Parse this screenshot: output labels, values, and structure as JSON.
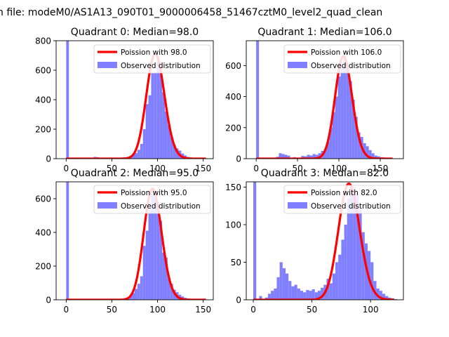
{
  "figure": {
    "suptitle": "n file: modeM0/AS1A13_090T01_9000006458_51467cztM0_level2_quad_clean"
  },
  "colors": {
    "hist": "#8080ff",
    "poisson": "#ff0000"
  },
  "chart_data": [
    {
      "type": "bar",
      "title": "Quadrant 0: Median=98.0",
      "legend": {
        "placement": "top-right",
        "entries": [
          "Poission with 98.0",
          "Observed distribution"
        ]
      },
      "xlim": [
        -11,
        161
      ],
      "ylim": [
        0,
        800
      ],
      "xticks": [
        0,
        50,
        100,
        150
      ],
      "yticks": [
        0,
        200,
        400,
        600,
        800
      ],
      "bin_width": 3,
      "series": [
        {
          "type": "bar",
          "bins": [
            [
              0,
              800
            ],
            [
              30,
              12
            ],
            [
              33,
              10
            ],
            [
              36,
              6
            ],
            [
              54,
              4
            ],
            [
              57,
              5
            ],
            [
              60,
              8
            ],
            [
              63,
              10
            ],
            [
              66,
              12
            ],
            [
              69,
              18
            ],
            [
              72,
              25
            ],
            [
              75,
              38
            ],
            [
              78,
              60
            ],
            [
              81,
              100
            ],
            [
              84,
              200
            ],
            [
              87,
              370
            ],
            [
              90,
              430
            ],
            [
              93,
              580
            ],
            [
              96,
              580
            ],
            [
              99,
              690
            ],
            [
              102,
              580
            ],
            [
              105,
              450
            ],
            [
              108,
              320
            ],
            [
              111,
              230
            ],
            [
              114,
              150
            ],
            [
              117,
              95
            ],
            [
              120,
              70
            ],
            [
              123,
              55
            ],
            [
              126,
              35
            ],
            [
              129,
              22
            ],
            [
              132,
              12
            ],
            [
              135,
              8
            ],
            [
              138,
              5
            ],
            [
              141,
              3
            ],
            [
              144,
              2
            ],
            [
              147,
              1
            ]
          ]
        },
        {
          "type": "line",
          "mu": 98.0,
          "x_range": [
            0,
            153
          ]
        }
      ]
    },
    {
      "type": "bar",
      "title": "Quadrant 1: Median=106.0",
      "legend": {
        "placement": "top-right",
        "entries": [
          "Poission with 106.0",
          "Observed distribution"
        ]
      },
      "xlim": [
        -12,
        178
      ],
      "ylim": [
        0,
        760
      ],
      "xticks": [
        0,
        50,
        100,
        150
      ],
      "yticks": [
        0,
        200,
        400,
        600
      ],
      "bin_width": 3.4,
      "series": [
        {
          "type": "bar",
          "bins": [
            [
              0,
              760
            ],
            [
              24,
              12
            ],
            [
              27.4,
              35
            ],
            [
              30.8,
              30
            ],
            [
              34.2,
              25
            ],
            [
              37.6,
              20
            ],
            [
              44.4,
              10
            ],
            [
              54.6,
              18
            ],
            [
              58,
              15
            ],
            [
              61.4,
              25
            ],
            [
              64.8,
              20
            ],
            [
              68.2,
              30
            ],
            [
              71.6,
              25
            ],
            [
              75,
              35
            ],
            [
              78.4,
              50
            ],
            [
              81.8,
              60
            ],
            [
              85.2,
              110
            ],
            [
              88.6,
              200
            ],
            [
              92,
              300
            ],
            [
              95.4,
              400
            ],
            [
              98.8,
              530
            ],
            [
              102.2,
              600
            ],
            [
              105.6,
              640
            ],
            [
              109,
              570
            ],
            [
              112.4,
              500
            ],
            [
              115.8,
              380
            ],
            [
              119.2,
              270
            ],
            [
              122.6,
              170
            ],
            [
              126,
              140
            ],
            [
              129.4,
              100
            ],
            [
              132.8,
              80
            ],
            [
              136.2,
              55
            ],
            [
              139.6,
              35
            ],
            [
              143,
              20
            ],
            [
              146.4,
              15
            ],
            [
              149.8,
              10
            ],
            [
              153.2,
              8
            ],
            [
              156.6,
              5
            ]
          ]
        },
        {
          "type": "line",
          "mu": 106.0,
          "x_range": [
            0,
            165
          ]
        }
      ]
    },
    {
      "type": "bar",
      "title": "Quadrant 2: Median=95.0",
      "legend": {
        "placement": "top-right",
        "entries": [
          "Poission with 95.0",
          "Observed distribution"
        ]
      },
      "xlim": [
        -11,
        161
      ],
      "ylim": [
        0,
        700
      ],
      "xticks": [
        0,
        50,
        100,
        150
      ],
      "yticks": [
        0,
        200,
        400,
        600
      ],
      "bin_width": 3,
      "series": [
        {
          "type": "bar",
          "bins": [
            [
              0,
              700
            ],
            [
              51,
              3
            ],
            [
              57,
              4
            ],
            [
              60,
              5
            ],
            [
              63,
              8
            ],
            [
              66,
              12
            ],
            [
              69,
              25
            ],
            [
              72,
              40
            ],
            [
              75,
              65
            ],
            [
              78,
              95
            ],
            [
              81,
              140
            ],
            [
              84,
              320
            ],
            [
              87,
              410
            ],
            [
              90,
              530
            ],
            [
              93,
              630
            ],
            [
              96,
              640
            ],
            [
              99,
              560
            ],
            [
              102,
              470
            ],
            [
              105,
              280
            ],
            [
              108,
              250
            ],
            [
              111,
              130
            ],
            [
              114,
              95
            ],
            [
              117,
              60
            ],
            [
              120,
              45
            ],
            [
              123,
              30
            ],
            [
              126,
              20
            ],
            [
              129,
              12
            ],
            [
              132,
              8
            ],
            [
              135,
              5
            ],
            [
              138,
              3
            ],
            [
              141,
              2
            ],
            [
              144,
              1
            ]
          ]
        },
        {
          "type": "line",
          "mu": 95.0,
          "x_range": [
            0,
            153
          ]
        }
      ]
    },
    {
      "type": "bar",
      "title": "Quadrant 3: Median=82.0",
      "legend": {
        "placement": "top-right",
        "entries": [
          "Poission with 82.0",
          "Observed distribution"
        ]
      },
      "xlim": [
        -6,
        128
      ],
      "ylim": [
        0,
        157
      ],
      "xticks": [
        0,
        50,
        100
      ],
      "yticks": [
        0,
        50,
        100,
        150
      ],
      "bin_width": 2.5,
      "series": [
        {
          "type": "bar",
          "bins": [
            [
              0,
              157
            ],
            [
              5,
              5
            ],
            [
              10,
              3
            ],
            [
              12.5,
              8
            ],
            [
              15,
              12
            ],
            [
              17.5,
              15
            ],
            [
              20,
              30
            ],
            [
              22.5,
              50
            ],
            [
              25,
              42
            ],
            [
              27.5,
              35
            ],
            [
              30,
              25
            ],
            [
              32.5,
              18
            ],
            [
              35,
              20
            ],
            [
              37.5,
              15
            ],
            [
              40,
              12
            ],
            [
              42.5,
              10
            ],
            [
              45,
              13
            ],
            [
              47.5,
              12
            ],
            [
              50,
              14
            ],
            [
              52.5,
              10
            ],
            [
              55,
              12
            ],
            [
              57.5,
              16
            ],
            [
              60,
              20
            ],
            [
              62.5,
              28
            ],
            [
              65,
              22
            ],
            [
              67.5,
              35
            ],
            [
              70,
              50
            ],
            [
              72.5,
              60
            ],
            [
              75,
              80
            ],
            [
              77.5,
              100
            ],
            [
              80,
              135
            ],
            [
              82.5,
              150
            ],
            [
              85,
              150
            ],
            [
              87.5,
              140
            ],
            [
              90,
              120
            ],
            [
              92.5,
              90
            ],
            [
              95,
              75
            ],
            [
              97.5,
              65
            ],
            [
              100,
              50
            ],
            [
              102.5,
              25
            ],
            [
              105,
              15
            ],
            [
              107.5,
              12
            ],
            [
              110,
              8
            ],
            [
              112.5,
              5
            ],
            [
              115,
              3
            ],
            [
              117.5,
              2
            ],
            [
              120,
              1
            ]
          ]
        },
        {
          "type": "line",
          "mu": 82.0,
          "x_range": [
            0,
            120
          ]
        }
      ]
    }
  ]
}
